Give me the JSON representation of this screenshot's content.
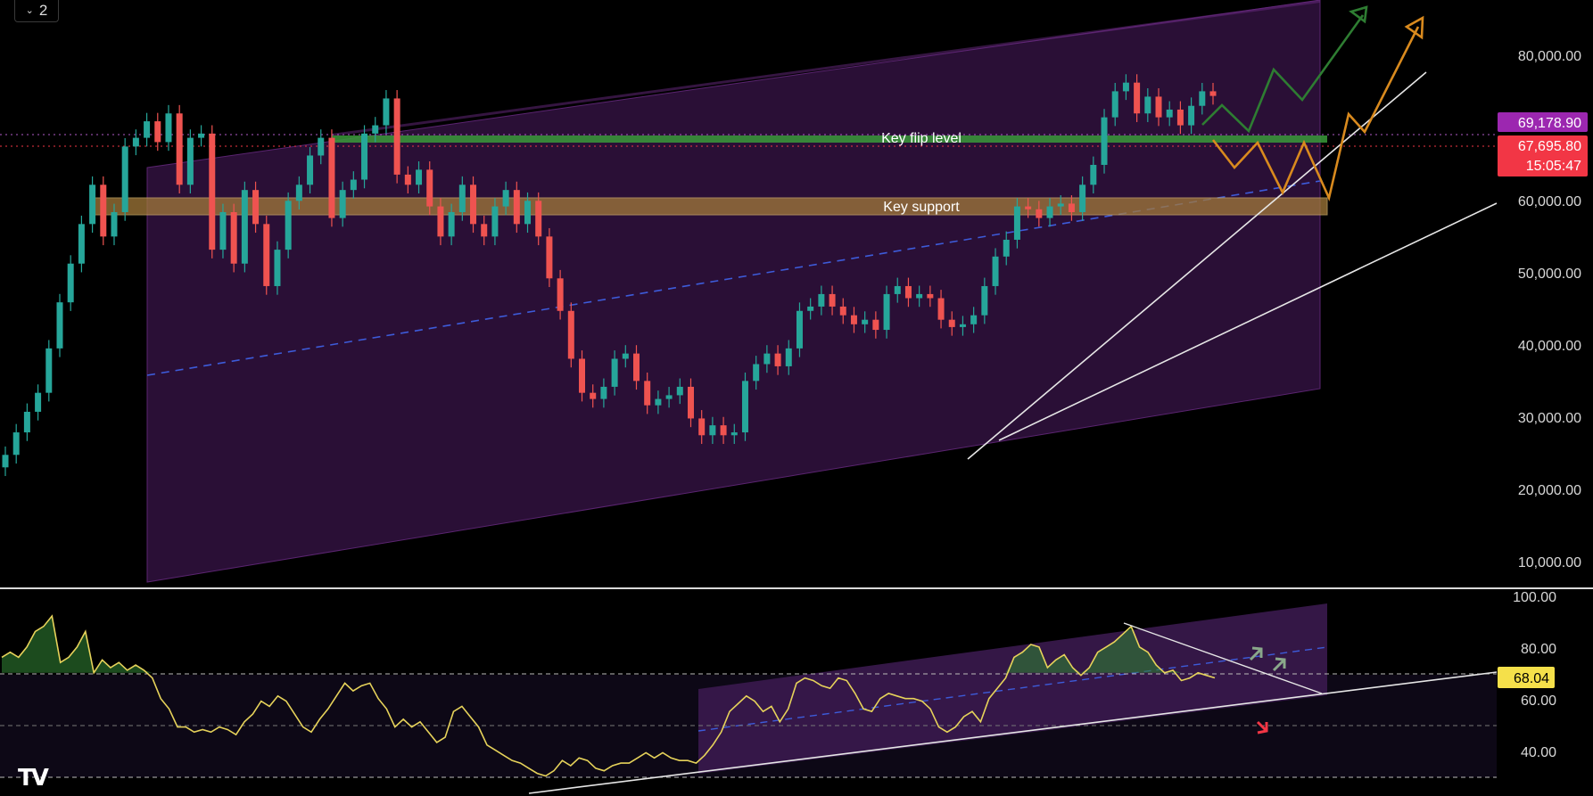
{
  "toolbar": {
    "layout_count": "2"
  },
  "logo": {
    "text": "TV"
  },
  "colors": {
    "background": "#000000",
    "candle_up": "#26a69a",
    "candle_down": "#ef5350",
    "channel_fill": "#2a0f36",
    "rsi_line": "#e6d25a",
    "projection_green": "#2e7d32",
    "projection_orange": "#d98a1e",
    "midline_blue": "#3d5bd9",
    "tag_purple": "#9c27b0",
    "tag_red": "#f23645",
    "tag_yellow": "#f5e04a"
  },
  "price_pane": {
    "tags": {
      "upper_price": "69,178.90",
      "last_price": "67,695.80",
      "countdown": "15:05:47"
    },
    "zones": {
      "flip_label": "Key flip level",
      "support_label": "Key support"
    }
  },
  "rsi_pane": {
    "value_tag": "68.04"
  },
  "chart_data": [
    {
      "type": "line",
      "subtype": "candlestick",
      "title": "",
      "y_axis_ticks": [
        "10,000.00",
        "20,000.00",
        "30,000.00",
        "40,000.00",
        "50,000.00",
        "60,000.00",
        "80,000.00"
      ],
      "ylim": [
        4000,
        90000
      ],
      "y_scale": "log",
      "series": [
        {
          "values": [
            15500,
            17000,
            18500,
            20000,
            24000,
            29000,
            34000,
            40000,
            47000,
            38000,
            42000,
            55000,
            57000,
            61000,
            56000,
            63000,
            47000,
            57000,
            58000,
            36000,
            42000,
            34000,
            46000,
            40000,
            31000,
            36000,
            44000,
            47000,
            53000,
            57000,
            41000,
            46000,
            48000,
            58000,
            60000,
            67000,
            49000,
            47000,
            50000,
            43000,
            38000,
            42000,
            47000,
            40000,
            38000,
            43000,
            46000,
            40000,
            44000,
            38000,
            32000,
            28000,
            23000,
            20000,
            19500,
            20500,
            23000,
            23500,
            21000,
            19000,
            19500,
            19800,
            20500,
            18000,
            16800,
            17500,
            16800,
            17000,
            21000,
            22500,
            23500,
            22300,
            24000,
            28000,
            28500,
            30000,
            28500,
            27500,
            26500,
            27000,
            25900,
            30000,
            31000,
            29500,
            30000,
            29500,
            27000,
            26200,
            26500,
            27500,
            31000,
            35000,
            37500,
            43000,
            42500,
            41000,
            43000,
            43500,
            42000,
            47000,
            51000,
            62000,
            69000,
            71500,
            63000,
            67500,
            62000,
            64000,
            60000,
            65000,
            69000,
            67695.8
          ]
        }
      ],
      "zones": [
        {
          "label": "Key flip level",
          "value": 69000
        },
        {
          "label": "Key support",
          "range": [
            58000,
            61500
          ]
        }
      ],
      "price_tags": [
        "69,178.90",
        "67,695.80"
      ]
    },
    {
      "type": "line",
      "title": "",
      "y_axis_ticks": [
        "100.00",
        "80.00",
        "60.00",
        "40.00"
      ],
      "ylim": [
        26,
        100
      ],
      "levels": [
        70,
        50,
        30
      ],
      "series": [
        {
          "values": [
            76,
            78,
            76,
            80,
            86,
            88,
            92,
            74,
            76,
            80,
            86,
            70,
            75,
            72,
            74,
            71,
            73,
            71,
            68,
            60,
            56,
            49,
            49,
            47,
            48,
            47,
            49,
            48,
            46,
            51,
            54,
            59,
            57,
            61,
            59,
            54,
            49,
            47,
            52,
            56,
            61,
            66,
            63,
            65,
            66,
            60,
            56,
            49,
            52,
            49,
            51,
            47,
            43,
            45,
            55,
            57,
            53,
            49,
            42,
            40,
            38,
            36,
            35,
            33,
            31,
            30,
            32,
            36,
            34,
            37,
            36,
            33,
            32,
            34,
            35,
            35,
            37,
            39,
            37,
            39,
            37,
            36,
            36,
            35,
            38,
            42,
            47,
            55,
            58,
            61,
            59,
            55,
            57,
            51,
            56,
            66,
            68,
            67,
            65,
            64,
            68,
            67,
            62,
            56,
            55,
            60,
            62,
            61,
            60,
            60,
            59,
            56,
            49,
            47,
            49,
            53,
            55,
            51,
            60,
            64,
            68,
            76,
            78,
            81,
            80,
            72,
            75,
            77,
            72,
            69,
            72,
            78,
            80,
            82,
            85,
            88,
            80,
            78,
            73,
            70,
            71,
            67,
            68,
            70,
            69,
            68.04
          ]
        }
      ]
    }
  ]
}
